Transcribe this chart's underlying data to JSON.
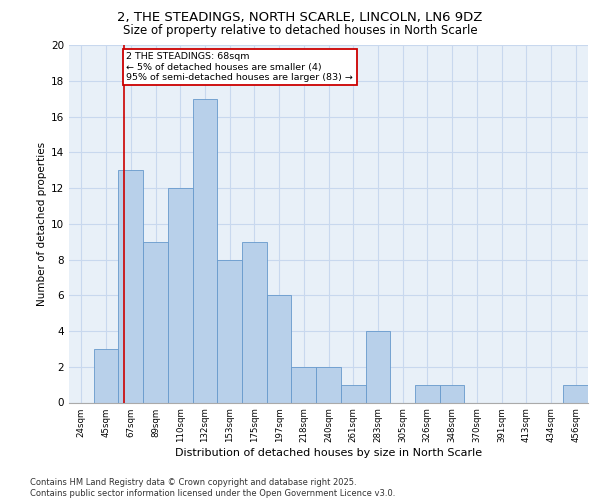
{
  "title1": "2, THE STEADINGS, NORTH SCARLE, LINCOLN, LN6 9DZ",
  "title2": "Size of property relative to detached houses in North Scarle",
  "xlabel": "Distribution of detached houses by size in North Scarle",
  "ylabel": "Number of detached properties",
  "categories": [
    "24sqm",
    "45sqm",
    "67sqm",
    "89sqm",
    "110sqm",
    "132sqm",
    "153sqm",
    "175sqm",
    "197sqm",
    "218sqm",
    "240sqm",
    "261sqm",
    "283sqm",
    "305sqm",
    "326sqm",
    "348sqm",
    "370sqm",
    "391sqm",
    "413sqm",
    "434sqm",
    "456sqm"
  ],
  "values": [
    0,
    3,
    13,
    9,
    12,
    17,
    8,
    9,
    6,
    2,
    2,
    1,
    4,
    0,
    1,
    1,
    0,
    0,
    0,
    0,
    1
  ],
  "bar_color": "#b8d0ea",
  "bar_edge_color": "#6699cc",
  "grid_color": "#c8d8ee",
  "background_color": "#e8f0f8",
  "red_line_x": 1.72,
  "annotation_text": "2 THE STEADINGS: 68sqm\n← 5% of detached houses are smaller (4)\n95% of semi-detached houses are larger (83) →",
  "annotation_box_color": "#ffffff",
  "annotation_box_edge": "#cc0000",
  "footer": "Contains HM Land Registry data © Crown copyright and database right 2025.\nContains public sector information licensed under the Open Government Licence v3.0.",
  "ylim": [
    0,
    20
  ],
  "yticks": [
    0,
    2,
    4,
    6,
    8,
    10,
    12,
    14,
    16,
    18,
    20
  ],
  "title1_fontsize": 9.5,
  "title2_fontsize": 8.5
}
